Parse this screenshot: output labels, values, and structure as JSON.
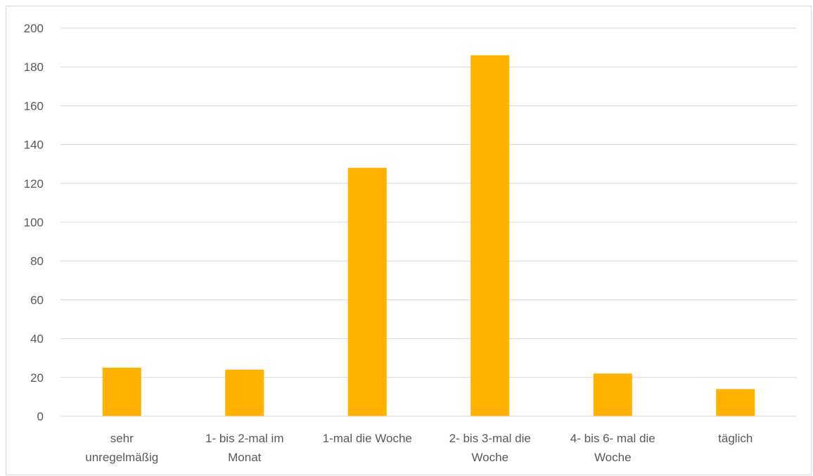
{
  "chart_data": {
    "type": "bar",
    "categories": [
      [
        "sehr",
        "unregelmäßig"
      ],
      [
        "1- bis 2-mal im",
        "Monat"
      ],
      [
        "1-mal die Woche"
      ],
      [
        "2- bis 3-mal die",
        "Woche"
      ],
      [
        "4- bis 6- mal die",
        "Woche"
      ],
      [
        "täglich"
      ]
    ],
    "values": [
      25,
      24,
      128,
      186,
      22,
      14
    ],
    "ylim": [
      0,
      200
    ],
    "yticks": [
      0,
      20,
      40,
      60,
      80,
      100,
      120,
      140,
      160,
      180,
      200
    ],
    "grid": true,
    "bar_color": "#ffb200",
    "grid_color": "#d9d9d9",
    "axis_color": "#d9d9d9",
    "label_color": "#595959"
  }
}
